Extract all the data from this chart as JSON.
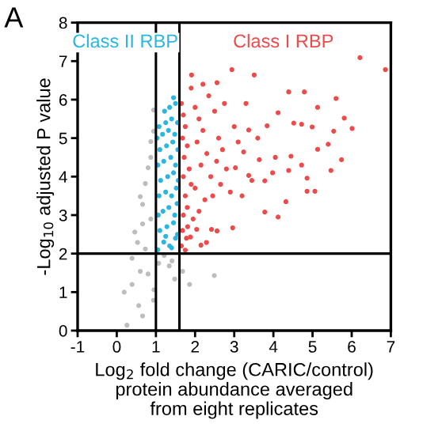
{
  "chart_data": {
    "type": "scatter",
    "xlabel": "Log$_{2}$ fold change (CARIC/control)\nprotein abundance averaged\nfrom eight replicates",
    "ylabel": "-Log$_{10}$ adjusted P value",
    "annotations": [
      "A"
    ],
    "xlim": [
      -1,
      7
    ],
    "xticks": [
      -1,
      0,
      1,
      2,
      3,
      4,
      5,
      6,
      7
    ],
    "ylim": [
      0,
      8
    ],
    "yticks": [
      0,
      1,
      2,
      3,
      4,
      5,
      6,
      7,
      8
    ],
    "grid": false,
    "legend": false,
    "marker": "circle",
    "ref_lines": [
      {
        "axis": "x",
        "value": 1,
        "color": "#000000"
      },
      {
        "axis": "x",
        "value": 1.6,
        "color": "#000000"
      },
      {
        "axis": "y",
        "value": 2,
        "color": "#000000"
      }
    ],
    "series": [
      {
        "color": "#bdbdbd",
        "x": [
          0.19,
          0.39,
          0.56,
          0.66,
          0.26,
          0.8,
          1.07,
          1.34,
          1.48,
          1.68,
          1.86,
          2.49,
          0.73,
          0.53,
          0.46,
          0.66,
          0.87,
          0.95,
          0.94,
          1.21,
          1.41,
          0.39,
          0.6,
          0.6,
          0.73,
          0.87,
          0.94,
          0.87,
          0.8,
          0.66,
          0.94
        ],
        "values": [
          1.0,
          1.2,
          0.65,
          0.38,
          0.14,
          1.47,
          1.75,
          1.68,
          1.34,
          1.54,
          1.2,
          1.43,
          2.12,
          2.29,
          2.56,
          2.77,
          2.9,
          1.06,
          0.79,
          1.95,
          1.81,
          1.88,
          1.54,
          3.48,
          3.82,
          4.5,
          5.18,
          4.91,
          4.23,
          3.28,
          5.73
        ]
      },
      {
        "name": "Class II RBP",
        "color": "#29b6e0",
        "x": [
          1.05,
          1.2,
          1.35,
          1.5,
          1.1,
          1.28,
          1.45,
          1.55,
          1.06,
          1.18,
          1.33,
          1.48,
          1.54,
          1.08,
          1.25,
          1.4,
          1.52,
          1.12,
          1.3,
          1.45,
          1.57,
          1.05,
          1.2,
          1.38,
          1.5,
          1.1,
          1.27,
          1.43,
          1.56,
          1.03,
          1.17,
          1.32,
          1.48,
          1.08,
          1.25,
          1.4,
          1.55,
          1.22,
          1.35,
          1.5,
          1.45,
          1.4,
          1.25
        ],
        "values": [
          2.1,
          2.3,
          2.2,
          2.4,
          2.6,
          2.7,
          2.8,
          2.5,
          3.0,
          3.1,
          3.2,
          3.0,
          3.3,
          3.5,
          3.6,
          3.5,
          3.7,
          3.9,
          4.0,
          4.1,
          3.9,
          4.3,
          4.4,
          4.5,
          4.3,
          4.7,
          4.8,
          4.9,
          4.7,
          5.0,
          5.1,
          5.2,
          5.1,
          5.3,
          5.4,
          5.5,
          5.4,
          5.7,
          5.8,
          5.9,
          6.05,
          2.15,
          2.45
        ]
      },
      {
        "name": "Class I RBP",
        "color": "#ee4a4a",
        "x": [
          6.21,
          6.86,
          2.94,
          3.51,
          1.91,
          2.56,
          4.39,
          4.79,
          5.6,
          5.13,
          4.12,
          4.52,
          4.99,
          5.81,
          6.01,
          5.54,
          4.72,
          3.84,
          3.37,
          5.4,
          5.74,
          5.13,
          4.05,
          4.45,
          3.64,
          3.24,
          4.72,
          5.47,
          3.98,
          4.39,
          3.78,
          3.37,
          4.86,
          5.06,
          4.32,
          4.86,
          3.03,
          3.78,
          4.12,
          2.96,
          2.56,
          2.29,
          2.15,
          1.75,
          1.88,
          2.42,
          2.04,
          1.81,
          1.65,
          1.7,
          1.75,
          1.68,
          1.8,
          1.72,
          1.85,
          1.7,
          1.9,
          1.75,
          1.8,
          1.7,
          1.95,
          1.68,
          1.78,
          1.65,
          2.0,
          2.1,
          2.2,
          2.05,
          2.3,
          2.15,
          2.4,
          2.0,
          2.25,
          2.1,
          2.5,
          2.6,
          2.7,
          2.55,
          2.8,
          2.65,
          2.45,
          2.9,
          3.0,
          3.1,
          2.35,
          1.9,
          2.2,
          3.3,
          3.6,
          3.45,
          3.2,
          2.75
        ],
        "values": [
          7.09,
          6.78,
          6.78,
          6.64,
          6.64,
          6.44,
          6.2,
          6.2,
          6.03,
          5.8,
          5.66,
          5.39,
          5.29,
          5.52,
          5.25,
          5.18,
          5.36,
          5.32,
          5.21,
          4.84,
          4.44,
          4.71,
          4.5,
          4.53,
          4.44,
          4.64,
          4.3,
          4.16,
          4.1,
          4.16,
          3.89,
          4.03,
          3.96,
          3.62,
          3.35,
          3.62,
          4.23,
          3.08,
          2.95,
          2.67,
          2.59,
          2.29,
          2.22,
          2.09,
          2.43,
          2.63,
          2.63,
          2.7,
          5.9,
          5.6,
          5.3,
          5.0,
          4.8,
          4.5,
          4.2,
          4.0,
          3.8,
          3.5,
          3.2,
          3.0,
          2.9,
          2.6,
          2.4,
          2.2,
          5.8,
          5.5,
          5.2,
          4.9,
          4.6,
          4.3,
          4.0,
          3.7,
          3.4,
          3.1,
          5.7,
          5.0,
          4.7,
          4.4,
          4.2,
          3.8,
          3.5,
          3.6,
          5.3,
          4.9,
          6.1,
          6.3,
          6.4,
          5.9,
          5.0,
          3.9,
          3.5,
          5.9
        ]
      }
    ]
  }
}
